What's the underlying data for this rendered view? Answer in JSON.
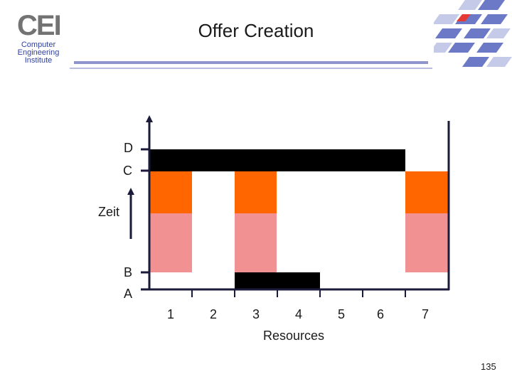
{
  "slide": {
    "title": "Offer Creation",
    "page_number": "135"
  },
  "logo": {
    "letters": "CEI",
    "line1": "Computer",
    "line2": "Engineering",
    "line3": "Institute"
  },
  "colors": {
    "black_block": "#000000",
    "orange": "#ff6600",
    "pink": "#f19191",
    "axis": "#1a1a3a"
  },
  "diagram": {
    "y_labels": [
      "A",
      "B",
      "Zeit",
      "C",
      "D"
    ],
    "x_ticks": [
      "1",
      "2",
      "3",
      "4",
      "5",
      "6",
      "7"
    ],
    "x_axis_label": "Resources"
  },
  "chart_data": {
    "type": "gantt",
    "xlabel": "Resources",
    "ylabel": "Zeit",
    "resources": [
      "1",
      "2",
      "3",
      "4",
      "5",
      "6",
      "7"
    ],
    "time_levels": [
      "A",
      "B",
      "C",
      "D"
    ],
    "blocks": [
      {
        "resources": [
          "1",
          "2",
          "3",
          "4",
          "5",
          "6"
        ],
        "from": "C",
        "to": "D",
        "color": "black"
      },
      {
        "resources": [
          "3",
          "4"
        ],
        "from": "A",
        "to": "A+",
        "color": "black"
      },
      {
        "resources": [
          "1"
        ],
        "from": "B",
        "to": "C",
        "color": "orange/pink"
      },
      {
        "resources": [
          "3"
        ],
        "from": "B",
        "to": "C",
        "color": "orange/pink"
      },
      {
        "resources": [
          "7"
        ],
        "from": "B",
        "to": "C",
        "color": "orange/pink"
      }
    ]
  }
}
